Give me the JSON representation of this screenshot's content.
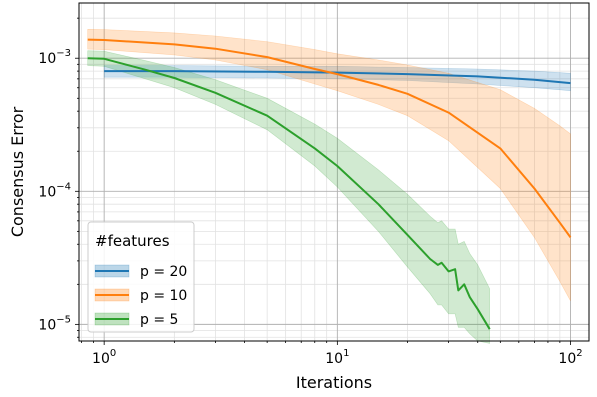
{
  "chart_data": {
    "type": "line",
    "xlabel": "Iterations",
    "ylabel": "Consensus Error",
    "xscale": "log",
    "yscale": "log",
    "xlim": [
      0.78,
      120
    ],
    "ylim": [
      7.5e-06,
      0.0026
    ],
    "grid": "both, major and minor",
    "x_ticks": [
      {
        "value": 1,
        "base": "10",
        "exp": "0"
      },
      {
        "value": 10,
        "base": "10",
        "exp": "1"
      },
      {
        "value": 100,
        "base": "10",
        "exp": "2"
      }
    ],
    "y_ticks": [
      {
        "value": 1e-05,
        "base": "10",
        "exp": "−5"
      },
      {
        "value": 0.0001,
        "base": "10",
        "exp": "−4"
      },
      {
        "value": 0.001,
        "base": "10",
        "exp": "−3"
      }
    ],
    "legend": {
      "title": "#features",
      "placement": "lower-left"
    },
    "series": [
      {
        "name": "p = 20",
        "color": "#1f77b4",
        "x": [
          1,
          2,
          5,
          10,
          20,
          40,
          70,
          100
        ],
        "y": [
          0.0008,
          0.0008,
          0.00079,
          0.00078,
          0.00076,
          0.00073,
          0.00069,
          0.00065
        ],
        "lower": [
          0.00072,
          0.00072,
          0.00071,
          0.0007,
          0.00068,
          0.00064,
          0.0006,
          0.00057
        ],
        "upper": [
          0.00088,
          0.00088,
          0.00087,
          0.00087,
          0.00085,
          0.00083,
          0.0008,
          0.00077
        ]
      },
      {
        "name": "p = 10",
        "color": "#ff7f0e",
        "x": [
          0.85,
          1,
          2,
          3,
          5,
          8,
          10,
          15,
          20,
          30,
          50,
          70,
          90,
          100
        ],
        "y": [
          0.00138,
          0.00137,
          0.00127,
          0.00118,
          0.00102,
          0.00083,
          0.00076,
          0.00063,
          0.00054,
          0.00039,
          0.00021,
          0.000105,
          5.8e-05,
          4.5e-05
        ],
        "lower": [
          0.00117,
          0.00116,
          0.00106,
          0.00097,
          0.00082,
          0.00064,
          0.00057,
          0.00045,
          0.00037,
          0.00024,
          0.000105,
          4.5e-05,
          2.1e-05,
          1.5e-05
        ],
        "upper": [
          0.00165,
          0.00164,
          0.00155,
          0.00147,
          0.00133,
          0.00116,
          0.00108,
          0.00097,
          0.00089,
          0.00077,
          0.00058,
          0.00042,
          0.00031,
          0.00027
        ]
      },
      {
        "name": "p = 5",
        "color": "#2ca02c",
        "x": [
          0.85,
          1,
          1.5,
          2,
          3,
          5,
          8,
          10,
          15,
          20,
          25,
          27,
          28,
          30,
          32,
          33,
          35,
          37,
          40,
          45
        ],
        "y": [
          0.001,
          0.00099,
          0.00082,
          0.00071,
          0.00055,
          0.00037,
          0.00021,
          0.000155,
          8e-05,
          4.7e-05,
          3.1e-05,
          2.8e-05,
          2.9e-05,
          2.5e-05,
          2.6e-05,
          1.8e-05,
          2e-05,
          1.6e-05,
          1.3e-05,
          9.2e-06
        ],
        "lower": [
          0.00088,
          0.00087,
          0.0007,
          0.0006,
          0.00045,
          0.00029,
          0.000155,
          0.000108,
          5e-05,
          2.7e-05,
          1.7e-05,
          1.4e-05,
          1.4e-05,
          1.2e-05,
          1.2e-05,
          9.5e-06,
          9.5e-06,
          8.5e-06,
          7.5e-06,
          7.2e-06
        ],
        "upper": [
          0.00114,
          0.00113,
          0.00096,
          0.00085,
          0.00069,
          0.0005,
          0.00032,
          0.00025,
          0.000145,
          9.5e-05,
          6.5e-05,
          5.8e-05,
          6e-05,
          5.2e-05,
          5.2e-05,
          4e-05,
          4.2e-05,
          3.4e-05,
          2.8e-05,
          1.85e-05
        ]
      }
    ]
  }
}
